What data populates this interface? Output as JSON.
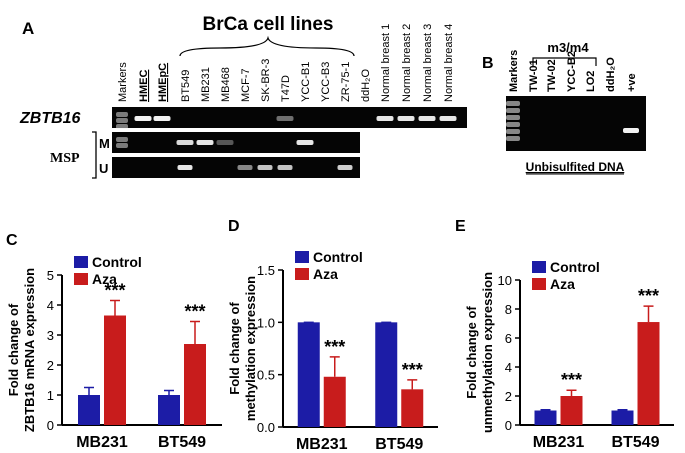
{
  "gel_a": {
    "label": "A",
    "title": "BrCa cell lines",
    "lanes": [
      "Markers",
      "HMEC",
      "HMEpC",
      "BT549",
      "MB231",
      "MB468",
      "MCF-7",
      "SK-BR-3",
      "T47D",
      "YCC-B1",
      "YCC-B3",
      "ZR-75-1",
      "ddH₂O",
      "Normal breast 1",
      "Normal breast 2",
      "Normal breast 3",
      "Normal breast 4"
    ],
    "gene": "ZBTB16",
    "msp": "MSP",
    "rows": [
      "M",
      "U"
    ]
  },
  "gel_b": {
    "label": "B",
    "title": "m3/m4",
    "lanes": [
      "Markers",
      "TW-01",
      "TW-02",
      "YCC-B2",
      "LO2",
      "ddH₂O",
      "+ve"
    ],
    "caption": "Unbisulfited DNA"
  },
  "chart_data": [
    {
      "type": "bar",
      "label": "C",
      "ylabel": [
        "Fold change of",
        "ZBTB16 mRNA expression"
      ],
      "categories": [
        "MB231",
        "BT549"
      ],
      "series": [
        {
          "name": "Control",
          "color": "#1c1ca6",
          "values": [
            1.0,
            1.0
          ],
          "errors": [
            0.25,
            0.15
          ]
        },
        {
          "name": "Aza",
          "color": "#c81c1c",
          "values": [
            3.65,
            2.7
          ],
          "errors": [
            0.5,
            0.75
          ]
        }
      ],
      "annotations": [
        "***",
        "***"
      ],
      "ylim": [
        0,
        5
      ],
      "yticks": [
        0,
        1,
        2,
        3,
        4,
        5
      ]
    },
    {
      "type": "bar",
      "label": "D",
      "ylabel": [
        "Fold change of",
        "methylation expression"
      ],
      "categories": [
        "MB231",
        "BT549"
      ],
      "series": [
        {
          "name": "Control",
          "color": "#1c1ca6",
          "values": [
            1.0,
            1.0
          ],
          "errors": [
            0,
            0
          ]
        },
        {
          "name": "Aza",
          "color": "#c81c1c",
          "values": [
            0.48,
            0.36
          ],
          "errors": [
            0.19,
            0.09
          ]
        }
      ],
      "annotations": [
        "***",
        "***"
      ],
      "ylim": [
        0,
        1.5
      ],
      "yticks": [
        {
          "value": 0,
          "label": "0.0"
        },
        0.5,
        {
          "value": 1,
          "label": "1.0"
        },
        1.5
      ]
    },
    {
      "type": "bar",
      "label": "E",
      "ylabel": [
        "Fold change of",
        "unmethylation expression"
      ],
      "categories": [
        "MB231",
        "BT549"
      ],
      "series": [
        {
          "name": "Control",
          "color": "#1c1ca6",
          "values": [
            1.0,
            1.0
          ],
          "errors": [
            0.05,
            0.05
          ]
        },
        {
          "name": "Aza",
          "color": "#c81c1c",
          "values": [
            2.0,
            7.1
          ],
          "errors": [
            0.4,
            1.1
          ]
        }
      ],
      "annotations": [
        "***",
        "***"
      ],
      "ylim": [
        0,
        10
      ],
      "yticks": [
        0,
        2,
        4,
        6,
        8,
        10
      ]
    }
  ]
}
